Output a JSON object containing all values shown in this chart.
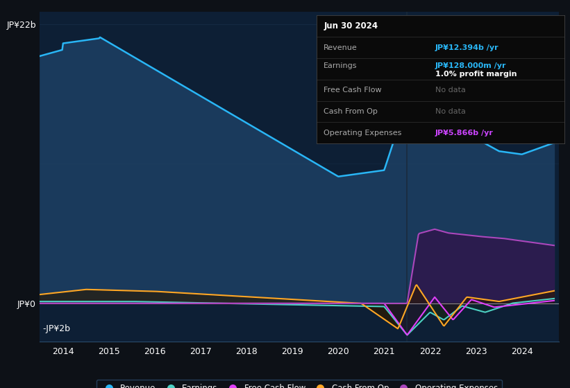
{
  "bg_color": "#0d1117",
  "plot_bg_color": "#0d1f35",
  "revenue_color": "#29b6f6",
  "revenue_fill": "#1a3a5c",
  "earnings_color": "#4dd0c4",
  "fcf_color": "#e040fb",
  "cashfromop_color": "#ffa726",
  "opex_color": "#ab47bc",
  "opex_fill": "#2d1b4e",
  "legend_items": [
    {
      "label": "Revenue",
      "color": "#29b6f6"
    },
    {
      "label": "Earnings",
      "color": "#4dd0c4"
    },
    {
      "label": "Free Cash Flow",
      "color": "#e040fb"
    },
    {
      "label": "Cash From Op",
      "color": "#ffa726"
    },
    {
      "label": "Operating Expenses",
      "color": "#ab47bc"
    }
  ],
  "info_box": {
    "date": "Jun 30 2024",
    "revenue_label": "Revenue",
    "revenue_val": "JP¥12.394b /yr",
    "revenue_color": "#29b6f6",
    "earnings_label": "Earnings",
    "earnings_val": "JP¥128.000m /yr",
    "earnings_color": "#29b6f6",
    "profit_margin": "1.0% profit margin",
    "fcf_label": "Free Cash Flow",
    "fcf_val": "No data",
    "cashfromop_label": "Cash From Op",
    "cashfromop_val": "No data",
    "opex_label": "Operating Expenses",
    "opex_val": "JP¥5.866b /yr",
    "opex_color": "#cc44ff"
  },
  "ylim": [
    -3.0,
    23.0
  ],
  "xlim": [
    2013.5,
    2024.8
  ],
  "ytick_positions": [
    0,
    22
  ],
  "ytick_labels": [
    "JP¥0",
    "JP¥22b"
  ],
  "x_ticks": [
    2014,
    2015,
    2016,
    2017,
    2018,
    2019,
    2020,
    2021,
    2022,
    2023,
    2024
  ]
}
